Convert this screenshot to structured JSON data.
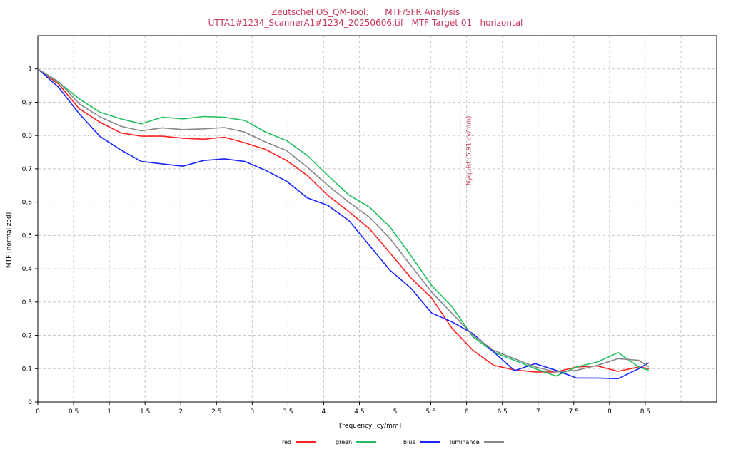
{
  "title": {
    "line1": "Zeutschel OS_QM-Tool:      MTF/SFR Analysis",
    "line2": "UTTA1#1234_ScannerA1#1234_20250606.tif   MTF Target 01   horizontal"
  },
  "chart_data": {
    "type": "line",
    "title": "Zeutschel OS_QM-Tool:      MTF/SFR Analysis",
    "subtitle": "UTTA1#1234_ScannerA1#1234_20250606.tif   MTF Target 01   horizontal",
    "xlabel": "Frequency [cy/mm]",
    "ylabel": "MTF [normalized]",
    "xlim": [
      0,
      9.5
    ],
    "ylim": [
      0,
      1.1
    ],
    "grid": true,
    "legend_position": "bottom",
    "xticks": [
      0,
      0.5,
      1,
      1.5,
      2,
      2.5,
      3,
      3.5,
      4,
      4.5,
      5,
      5.5,
      6,
      6.5,
      7,
      7.5,
      8,
      8.5
    ],
    "xtick_labels": [
      "0",
      "0.5",
      "1",
      "1.5",
      "2",
      "2.5",
      "3",
      "3.5",
      "4",
      "4.5",
      "5",
      "5.5",
      "6",
      "6.5",
      "7",
      "7.5",
      "8",
      "8.5"
    ],
    "yticks": [
      0,
      0.1,
      0.2,
      0.3,
      0.4,
      0.5,
      0.6,
      0.7,
      0.8,
      0.9,
      1
    ],
    "ytick_labels": [
      "0",
      "0.1",
      "0.2",
      "0.3",
      "0.4",
      "0.5",
      "0.6",
      "0.7",
      "0.8",
      "0.9",
      "1"
    ],
    "x": [
      0,
      0.29,
      0.58,
      0.87,
      1.16,
      1.45,
      1.74,
      2.03,
      2.32,
      2.61,
      2.9,
      3.19,
      3.48,
      3.77,
      4.06,
      4.35,
      4.64,
      4.93,
      5.22,
      5.51,
      5.8,
      6.09,
      6.38,
      6.67,
      6.96,
      7.25,
      7.54,
      7.83,
      8.12,
      8.41,
      8.55
    ],
    "series": [
      {
        "name": "red",
        "color": "#ff2020",
        "values": [
          1.0,
          0.955,
          0.88,
          0.84,
          0.808,
          0.798,
          0.798,
          0.792,
          0.789,
          0.795,
          0.778,
          0.758,
          0.725,
          0.68,
          0.62,
          0.572,
          0.52,
          0.447,
          0.373,
          0.312,
          0.22,
          0.155,
          0.11,
          0.096,
          0.09,
          0.09,
          0.105,
          0.108,
          0.092,
          0.105,
          0.1
        ]
      },
      {
        "name": "green",
        "color": "#20c060",
        "values": [
          1.0,
          0.96,
          0.91,
          0.87,
          0.85,
          0.835,
          0.855,
          0.85,
          0.857,
          0.855,
          0.845,
          0.81,
          0.785,
          0.74,
          0.68,
          0.622,
          0.585,
          0.525,
          0.44,
          0.35,
          0.285,
          0.195,
          0.15,
          0.125,
          0.1,
          0.078,
          0.105,
          0.12,
          0.148,
          0.105,
          0.095
        ]
      },
      {
        "name": "blue",
        "color": "#1a24ff",
        "values": [
          1.0,
          0.945,
          0.865,
          0.797,
          0.757,
          0.722,
          0.715,
          0.708,
          0.725,
          0.73,
          0.722,
          0.695,
          0.663,
          0.613,
          0.59,
          0.545,
          0.47,
          0.395,
          0.342,
          0.267,
          0.24,
          0.205,
          0.15,
          0.094,
          0.115,
          0.095,
          0.072,
          0.072,
          0.07,
          0.1,
          0.118
        ]
      },
      {
        "name": "luminance",
        "color": "#888888",
        "values": [
          1.0,
          0.962,
          0.895,
          0.856,
          0.828,
          0.814,
          0.823,
          0.818,
          0.82,
          0.824,
          0.81,
          0.78,
          0.755,
          0.705,
          0.65,
          0.6,
          0.555,
          0.49,
          0.41,
          0.33,
          0.265,
          0.2,
          0.155,
          0.13,
          0.105,
          0.09,
          0.095,
          0.11,
          0.13,
          0.125,
          0.105
        ]
      }
    ],
    "annotations": [
      {
        "type": "vline",
        "x": 5.91,
        "label": "Nyquist (5.91 cy/mm)",
        "color": "#a03050"
      }
    ]
  }
}
